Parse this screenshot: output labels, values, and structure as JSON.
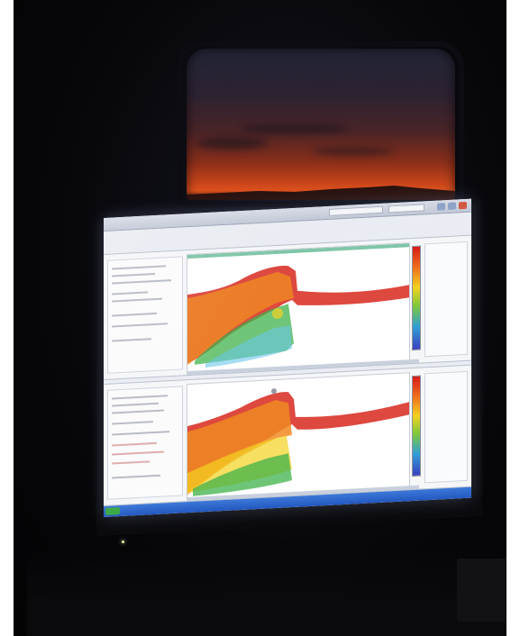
{
  "scene": {
    "subject": "",
    "window_colors": {
      "sky_top": "#222536",
      "horizon_glow": "#e0521e",
      "hills": "#3a1a14"
    },
    "room_background": "#07070a"
  },
  "monitor": {
    "display_background": "#e9ecf2",
    "taskbar_color": "#2358c0",
    "panes": [
      {
        "chart_data": {
          "type": "heatmap",
          "colorscale": [
            "#d71a1a",
            "#ef6c1c",
            "#f3d21f",
            "#7cc83a",
            "#2f9fd6",
            "#3a3fbf"
          ],
          "title": "",
          "xlabel": "",
          "ylabel": ""
        }
      },
      {
        "chart_data": {
          "type": "heatmap",
          "colorscale": [
            "#d71a1a",
            "#ef6c1c",
            "#f3d21f",
            "#7cc83a",
            "#2f9fd6",
            "#3a3fbf"
          ],
          "title": "",
          "xlabel": "",
          "ylabel": ""
        }
      }
    ]
  }
}
